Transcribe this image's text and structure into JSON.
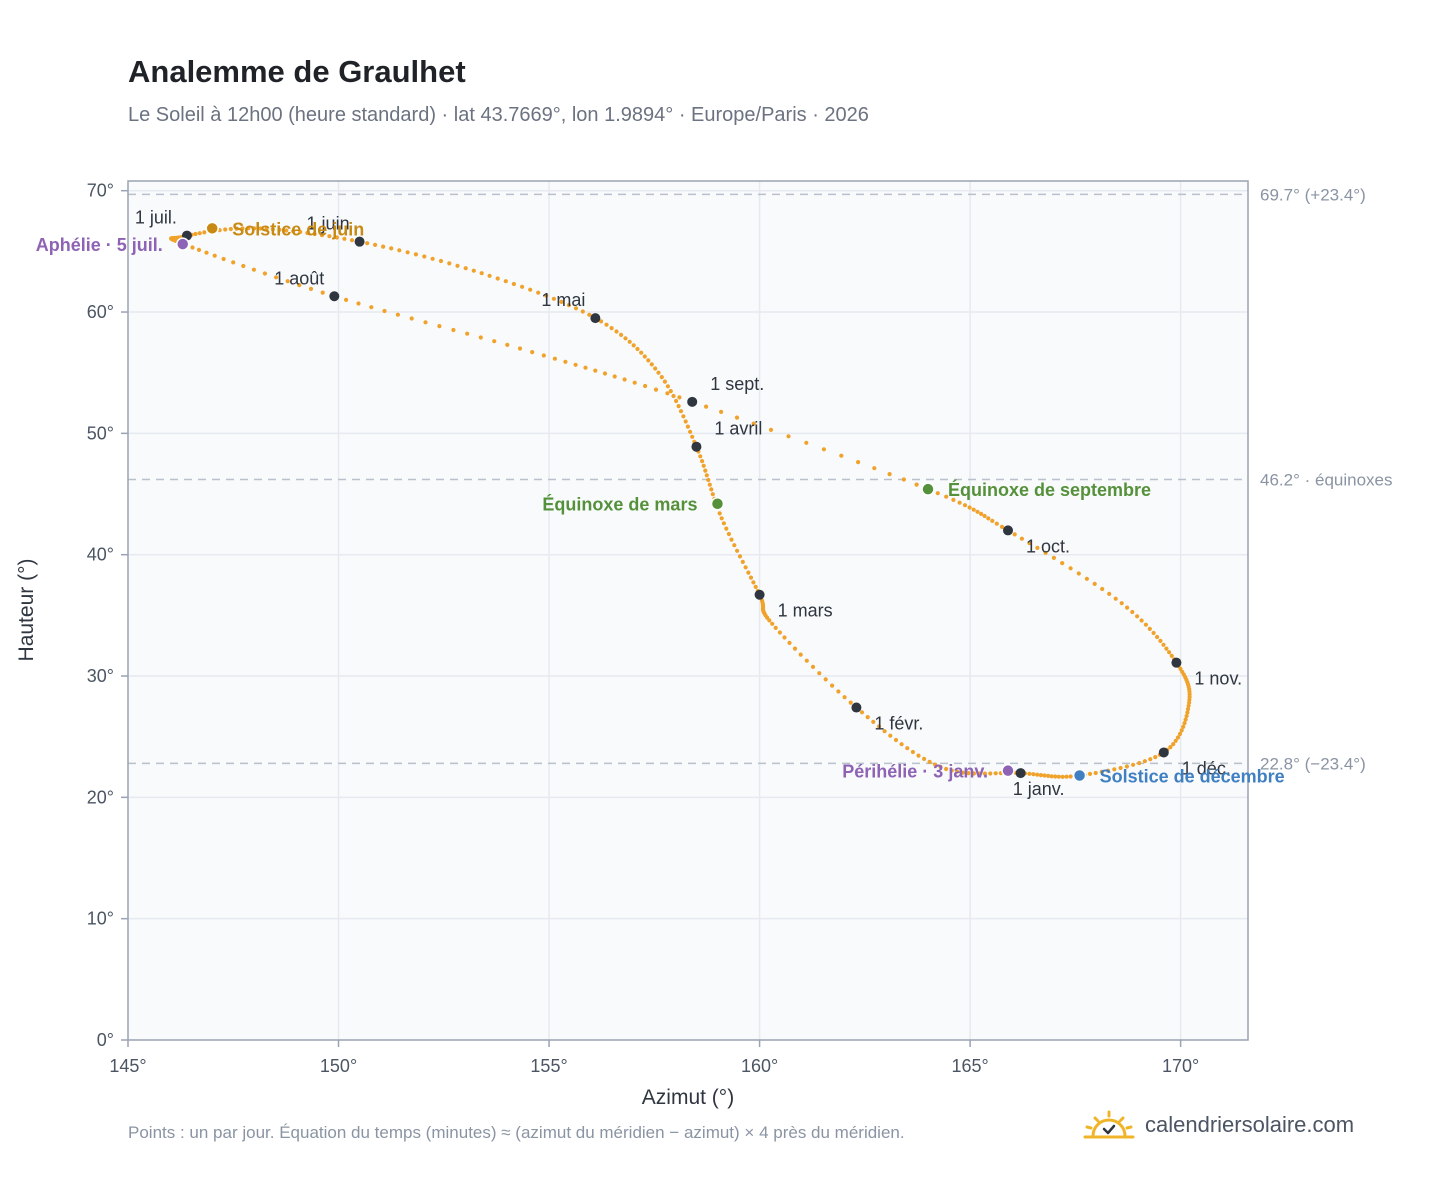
{
  "header": {
    "title": "Analemme de Graulhet",
    "subtitle": "Le Soleil à 12h00 (heure standard) · lat 43.7669°, lon 1.9894° · Europe/Paris · 2026"
  },
  "footer": {
    "note": "Points : un par jour. Équation du temps (minutes) ≈ (azimut du méridien − azimut) × 4 près du méridien.",
    "brand": "calendriersolaire.com",
    "brand_icon": "sun-check-icon"
  },
  "colors": {
    "curve": "#f0a22a",
    "month": "#2f3640",
    "aphelion": "#8e63b5",
    "june_solstice": "#c88a12",
    "equinox": "#55913a",
    "december_solstice": "#3f7fc2",
    "reference": "#b9c1cc",
    "grid": "#e6eaf0",
    "plot_bg": "#f8fafc",
    "axis": "#9aa3b1"
  },
  "chart_data": {
    "type": "scatter",
    "title": "Analemme de Graulhet",
    "xlabel": "Azimut (°)",
    "ylabel": "Hauteur (°)",
    "xlim": [
      145,
      171.6
    ],
    "ylim": [
      0,
      70.8
    ],
    "xticks": [
      {
        "value": 145,
        "label": "145°"
      },
      {
        "value": 150,
        "label": "150°"
      },
      {
        "value": 155,
        "label": "155°"
      },
      {
        "value": 160,
        "label": "160°"
      },
      {
        "value": 165,
        "label": "165°"
      },
      {
        "value": 170,
        "label": "170°"
      }
    ],
    "yticks": [
      {
        "value": 0,
        "label": "0°"
      },
      {
        "value": 10,
        "label": "10°"
      },
      {
        "value": 20,
        "label": "20°"
      },
      {
        "value": 30,
        "label": "30°"
      },
      {
        "value": 40,
        "label": "40°"
      },
      {
        "value": 50,
        "label": "50°"
      },
      {
        "value": 60,
        "label": "60°"
      },
      {
        "value": 70,
        "label": "70°"
      }
    ],
    "grid": true,
    "reference_lines": [
      {
        "y": 69.7,
        "label": "69.7° (+23.4°)"
      },
      {
        "y": 46.2,
        "label": "46.2° · équinoxes"
      },
      {
        "y": 22.8,
        "label": "22.8° (−23.4°)"
      }
    ],
    "daily_path": [
      {
        "x": 166.2,
        "y": 22.0
      },
      {
        "x": 164.3,
        "y": 22.5
      },
      {
        "x": 162.3,
        "y": 27.4
      },
      {
        "x": 160.3,
        "y": 34.3
      },
      {
        "x": 160.0,
        "y": 36.7
      },
      {
        "x": 159.1,
        "y": 43.0
      },
      {
        "x": 158.5,
        "y": 48.9
      },
      {
        "x": 157.6,
        "y": 55.0
      },
      {
        "x": 156.1,
        "y": 59.5
      },
      {
        "x": 153.4,
        "y": 63.2
      },
      {
        "x": 150.5,
        "y": 65.8
      },
      {
        "x": 148.0,
        "y": 66.9
      },
      {
        "x": 146.3,
        "y": 66.2
      },
      {
        "x": 146.4,
        "y": 65.5
      },
      {
        "x": 149.9,
        "y": 61.3
      },
      {
        "x": 154.6,
        "y": 56.7
      },
      {
        "x": 158.4,
        "y": 52.6
      },
      {
        "x": 164.0,
        "y": 45.4
      },
      {
        "x": 165.9,
        "y": 42.0
      },
      {
        "x": 168.6,
        "y": 36.0
      },
      {
        "x": 169.9,
        "y": 31.1
      },
      {
        "x": 170.2,
        "y": 27.8
      },
      {
        "x": 169.6,
        "y": 23.7
      },
      {
        "x": 167.6,
        "y": 21.8
      },
      {
        "x": 166.2,
        "y": 22.0
      }
    ],
    "months": [
      {
        "label": "1 janv.",
        "x": 166.2,
        "y": 22.0,
        "pos": "below"
      },
      {
        "label": "1 févr.",
        "x": 162.3,
        "y": 27.4,
        "pos": "below-right"
      },
      {
        "label": "1 mars",
        "x": 160.0,
        "y": 36.7,
        "pos": "below-right"
      },
      {
        "label": "1 avril",
        "x": 158.5,
        "y": 48.9,
        "pos": "above-right"
      },
      {
        "label": "1 mai",
        "x": 156.1,
        "y": 59.5,
        "pos": "above-left"
      },
      {
        "label": "1 juin",
        "x": 150.5,
        "y": 65.8,
        "pos": "above-left"
      },
      {
        "label": "1 juil.",
        "x": 146.4,
        "y": 66.3,
        "pos": "above-left"
      },
      {
        "label": "1 août",
        "x": 149.9,
        "y": 61.3,
        "pos": "above-left"
      },
      {
        "label": "1 sept.",
        "x": 158.4,
        "y": 52.6,
        "pos": "above-right"
      },
      {
        "label": "1 oct.",
        "x": 165.9,
        "y": 42.0,
        "pos": "below-right"
      },
      {
        "label": "1 nov.",
        "x": 169.9,
        "y": 31.1,
        "pos": "below-right"
      },
      {
        "label": "1 déc.",
        "x": 169.6,
        "y": 23.7,
        "pos": "below-right"
      }
    ],
    "events": [
      {
        "label": "Aphélie · 5 juil.",
        "x": 146.3,
        "y": 65.6,
        "color_key": "aphelion",
        "side": "left"
      },
      {
        "label": "Solstice de juin",
        "x": 147.0,
        "y": 66.9,
        "color_key": "june_solstice",
        "side": "right"
      },
      {
        "label": "Équinoxe de mars",
        "x": 159.0,
        "y": 44.2,
        "color_key": "equinox",
        "side": "left"
      },
      {
        "label": "Équinoxe de septembre",
        "x": 164.0,
        "y": 45.4,
        "color_key": "equinox",
        "side": "right"
      },
      {
        "label": "Périhélie · 3 janv.",
        "x": 165.9,
        "y": 22.2,
        "color_key": "aphelion",
        "side": "left"
      },
      {
        "label": "Solstice de décembre",
        "x": 167.6,
        "y": 21.8,
        "color_key": "december_solstice",
        "side": "right"
      }
    ]
  }
}
